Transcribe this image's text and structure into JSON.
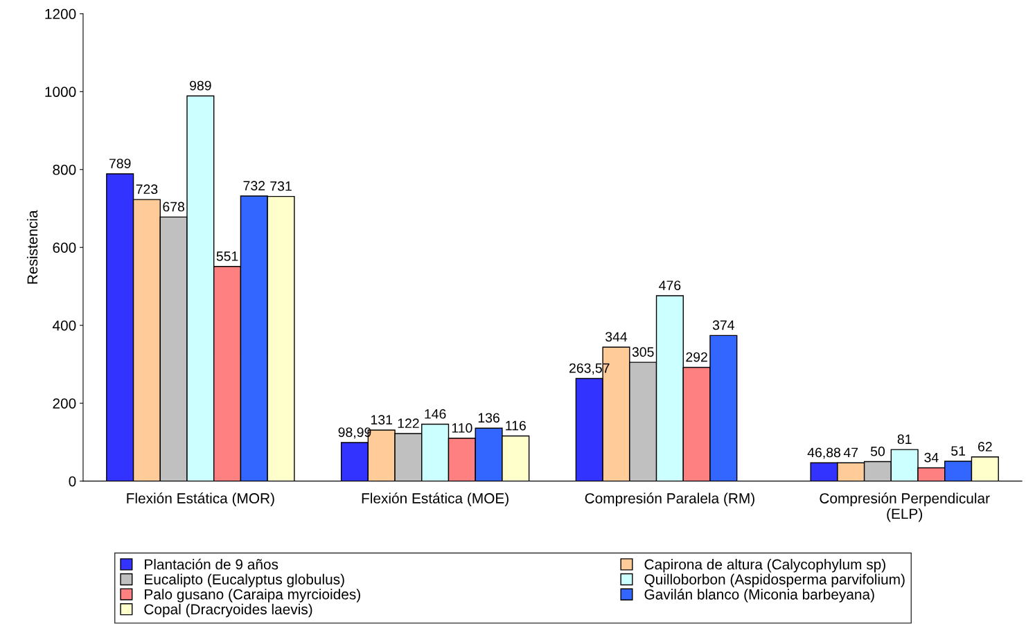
{
  "chart_data": {
    "type": "bar",
    "ylabel": "Resistencia",
    "categories": [
      "Flexión Estática (MOR)",
      "Flexión Estática (MOE)",
      "Compresión Paralela (RM)",
      "Compresión Perpendicular\n(ELP)"
    ],
    "series": [
      {
        "name": "Plantación de 9 años",
        "color": "#3333ff",
        "values": [
          789,
          98.99,
          263.57,
          46.88
        ],
        "value_labels": [
          "789",
          "98,99",
          "263,57",
          "46,88"
        ]
      },
      {
        "name": "Capirona de altura (Calycophylum sp)",
        "color": "#ffcc99",
        "values": [
          723,
          131,
          344,
          47
        ],
        "value_labels": [
          "723",
          "131",
          "344",
          "47"
        ]
      },
      {
        "name": "Eucalipto (Eucalyptus globulus)",
        "color": "#c0c0c0",
        "values": [
          678,
          122,
          305,
          50
        ],
        "value_labels": [
          "678",
          "122",
          "305",
          "50"
        ]
      },
      {
        "name": "Quilloborbon (Aspidosperma parvifolium)",
        "color": "#ccffff",
        "values": [
          989,
          146,
          476,
          81
        ],
        "value_labels": [
          "989",
          "146",
          "476",
          "81"
        ]
      },
      {
        "name": "Palo gusano (Caraipa myrcioides)",
        "color": "#ff8080",
        "values": [
          551,
          110,
          292,
          34
        ],
        "value_labels": [
          "551",
          "110",
          "292",
          "34"
        ]
      },
      {
        "name": "Gavilán blanco (Miconia barbeyana)",
        "color": "#3366ff",
        "values": [
          732,
          136,
          374,
          51
        ],
        "value_labels": [
          "732",
          "136",
          "374",
          "51"
        ]
      },
      {
        "name": "Copal (Dracryoides laevis)",
        "color": "#ffffcc",
        "values": [
          731,
          116,
          null,
          62
        ],
        "value_labels": [
          "731",
          "116",
          null,
          "62"
        ]
      }
    ],
    "ylim": [
      0,
      1200
    ],
    "yticks": [
      0,
      200,
      400,
      600,
      800,
      1000,
      1200
    ],
    "grid": false,
    "legend": "bottom"
  }
}
